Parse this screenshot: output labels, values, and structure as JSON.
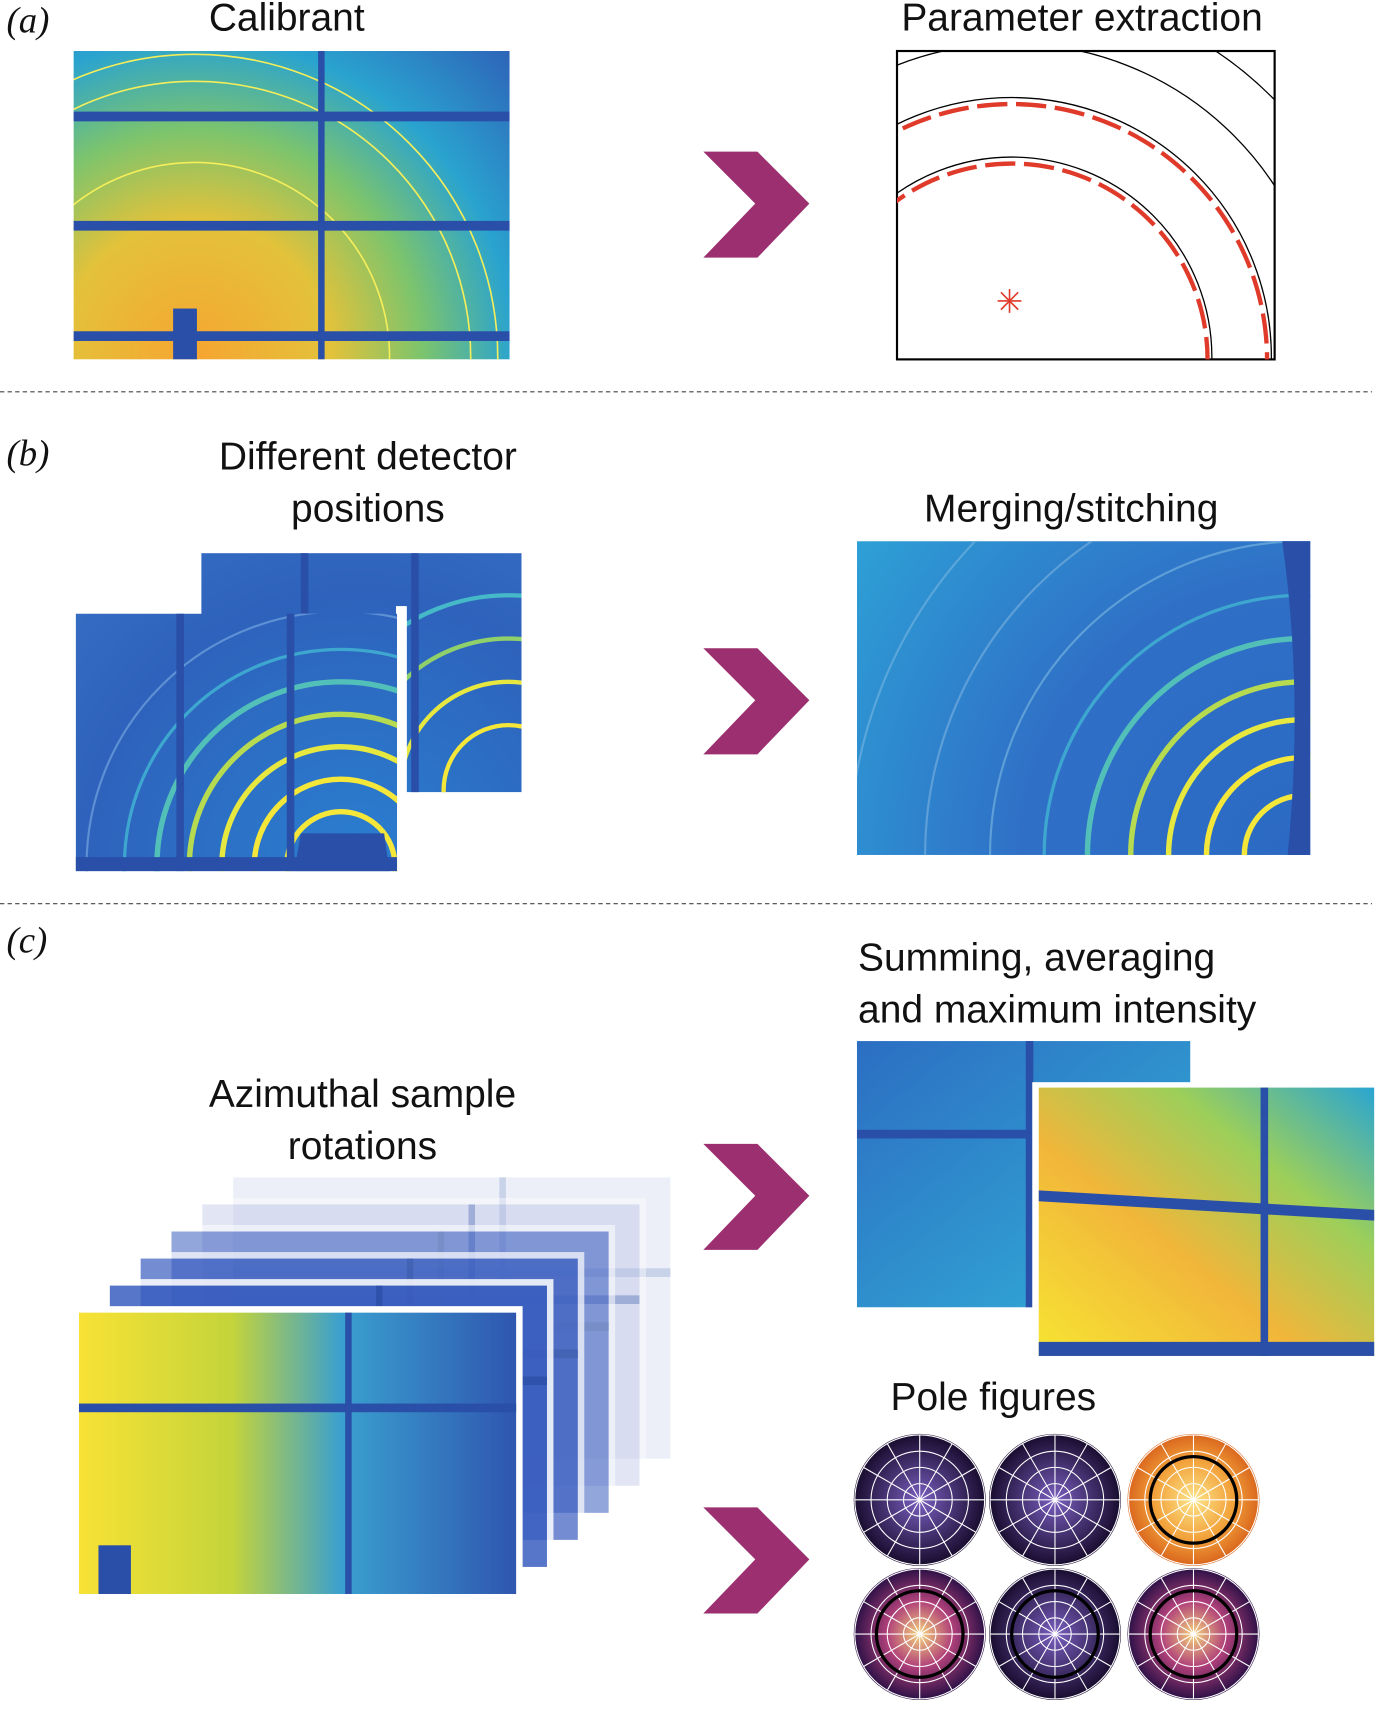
{
  "panels": [
    {
      "label": "(a)",
      "left_title": [
        "Calibrant"
      ],
      "right_title": [
        "Parameter extraction"
      ]
    },
    {
      "label": "(b)",
      "left_title": [
        "Different detector",
        "positions"
      ],
      "right_title": [
        "Merging/stitching"
      ]
    },
    {
      "label": "(c)",
      "left_title": [
        "Azimuthal sample",
        "rotations"
      ],
      "right_title": [
        "Summing, averaging",
        "and maximum intensity"
      ],
      "right_title_2": [
        "Pole figures"
      ]
    }
  ]
}
